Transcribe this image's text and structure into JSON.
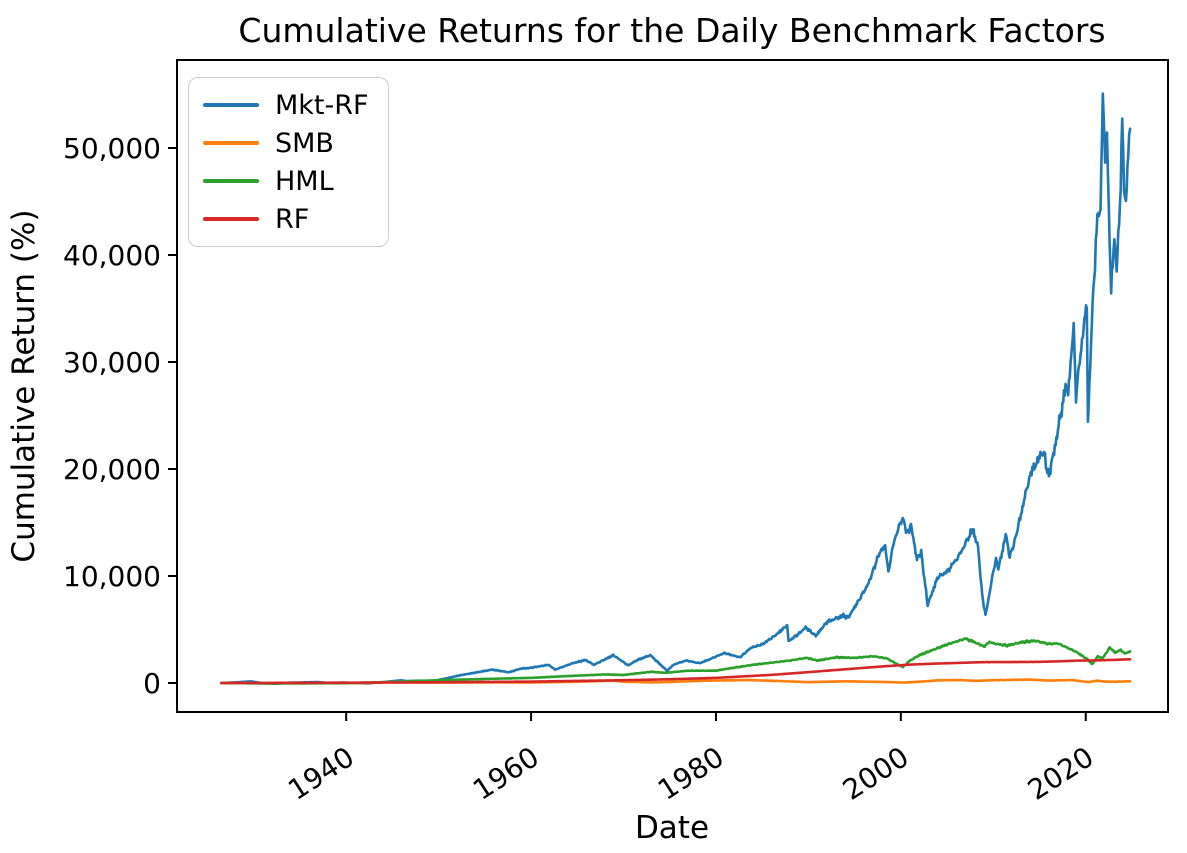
{
  "figure": {
    "background": "#ffffff",
    "spine_color": "#000000",
    "text_color": "#000000"
  },
  "chart_data": {
    "type": "line",
    "title": "Cumulative Returns for the Daily Benchmark Factors",
    "xlabel": "Date",
    "ylabel": "Cumulative Return (%)",
    "legend_position": "upper-left",
    "grid": false,
    "x_axis_unit": "year",
    "x_range": [
      1921.7,
      2028.9
    ],
    "y_range": [
      -2710,
      58225
    ],
    "x_ticks": [
      1940,
      1960,
      1980,
      2000,
      2020
    ],
    "x_tick_labels": [
      "1940",
      "1960",
      "1980",
      "2000",
      "2020"
    ],
    "x_tick_rotation_deg": 33,
    "y_ticks": [
      0,
      10000,
      20000,
      30000,
      40000,
      50000
    ],
    "y_tick_labels": [
      "0",
      "10,000",
      "20,000",
      "30,000",
      "40,000",
      "50,000"
    ],
    "series": [
      {
        "name": "Mkt-RF",
        "color": "#1f77b4",
        "noise_rel": 0.032,
        "noise_abs": 4,
        "points": [
          [
            1926.5,
            0
          ],
          [
            1928,
            60
          ],
          [
            1929.7,
            150
          ],
          [
            1931,
            -20
          ],
          [
            1932.5,
            -70
          ],
          [
            1933.8,
            30
          ],
          [
            1936.9,
            90
          ],
          [
            1938.2,
            0
          ],
          [
            1939.7,
            40
          ],
          [
            1942.3,
            -30
          ],
          [
            1944,
            80
          ],
          [
            1945.9,
            250
          ],
          [
            1946.6,
            180
          ],
          [
            1948,
            220
          ],
          [
            1949.4,
            180
          ],
          [
            1950.9,
            450
          ],
          [
            1952.5,
            750
          ],
          [
            1954.5,
            1050
          ],
          [
            1955.8,
            1250
          ],
          [
            1957.6,
            1000
          ],
          [
            1958.9,
            1350
          ],
          [
            1959.8,
            1400
          ],
          [
            1961.9,
            1700
          ],
          [
            1962.6,
            1250
          ],
          [
            1964.5,
            1850
          ],
          [
            1965.9,
            2150
          ],
          [
            1966.8,
            1700
          ],
          [
            1968.9,
            2600
          ],
          [
            1970.5,
            1650
          ],
          [
            1971.5,
            2150
          ],
          [
            1972.9,
            2600
          ],
          [
            1974.7,
            1150
          ],
          [
            1975.5,
            1750
          ],
          [
            1976.8,
            2100
          ],
          [
            1978.2,
            1850
          ],
          [
            1979,
            2100
          ],
          [
            1980.9,
            2800
          ],
          [
            1982.6,
            2400
          ],
          [
            1983.8,
            3300
          ],
          [
            1985,
            3600
          ],
          [
            1986.5,
            4500
          ],
          [
            1987.7,
            5400
          ],
          [
            1987.85,
            3900
          ],
          [
            1989.1,
            4700
          ],
          [
            1989.7,
            5200
          ],
          [
            1990.8,
            4400
          ],
          [
            1992,
            5700
          ],
          [
            1993.8,
            6300
          ],
          [
            1994.3,
            6100
          ],
          [
            1995.5,
            7800
          ],
          [
            1996.5,
            9300
          ],
          [
            1997.7,
            12200
          ],
          [
            1998.3,
            12800
          ],
          [
            1998.65,
            10400
          ],
          [
            1999.3,
            13400
          ],
          [
            2000.2,
            15500
          ],
          [
            2000.65,
            14000
          ],
          [
            2001.1,
            14700
          ],
          [
            2001.75,
            11600
          ],
          [
            2002.2,
            12200
          ],
          [
            2002.9,
            7300
          ],
          [
            2004,
            9900
          ],
          [
            2005,
            10400
          ],
          [
            2006.3,
            11900
          ],
          [
            2007.2,
            13400
          ],
          [
            2007.8,
            14400
          ],
          [
            2008.35,
            12700
          ],
          [
            2008.8,
            8200
          ],
          [
            2009.16,
            6300
          ],
          [
            2009.9,
            9900
          ],
          [
            2010.3,
            11700
          ],
          [
            2010.55,
            10600
          ],
          [
            2011.35,
            13900
          ],
          [
            2011.78,
            11800
          ],
          [
            2012.3,
            13200
          ],
          [
            2013,
            15800
          ],
          [
            2013.9,
            19200
          ],
          [
            2014.7,
            20700
          ],
          [
            2015.5,
            21700
          ],
          [
            2015.7,
            20200
          ],
          [
            2016.1,
            19500
          ],
          [
            2016.9,
            23200
          ],
          [
            2017.9,
            28000
          ],
          [
            2018.1,
            27200
          ],
          [
            2018.7,
            33300
          ],
          [
            2018.95,
            26800
          ],
          [
            2019.6,
            32000
          ],
          [
            2020.12,
            35600
          ],
          [
            2020.24,
            24400
          ],
          [
            2020.65,
            33500
          ],
          [
            2021.0,
            39500
          ],
          [
            2021.35,
            44500
          ],
          [
            2021.6,
            43800
          ],
          [
            2021.85,
            55200
          ],
          [
            2022.1,
            49000
          ],
          [
            2022.3,
            51500
          ],
          [
            2022.5,
            44000
          ],
          [
            2022.75,
            36800
          ],
          [
            2023.1,
            41500
          ],
          [
            2023.35,
            38800
          ],
          [
            2023.7,
            44500
          ],
          [
            2023.95,
            52800
          ],
          [
            2024.15,
            46500
          ],
          [
            2024.35,
            44800
          ],
          [
            2024.6,
            50000
          ],
          [
            2024.8,
            51800
          ]
        ]
      },
      {
        "name": "SMB",
        "color": "#ff7f0e",
        "noise_rel": 0.05,
        "noise_abs": 14,
        "points": [
          [
            1926.5,
            0
          ],
          [
            1935,
            -30
          ],
          [
            1940,
            -20
          ],
          [
            1945,
            60
          ],
          [
            1950,
            40
          ],
          [
            1955,
            60
          ],
          [
            1960,
            50
          ],
          [
            1965,
            120
          ],
          [
            1968.9,
            220
          ],
          [
            1970,
            120
          ],
          [
            1973,
            60
          ],
          [
            1975,
            100
          ],
          [
            1979,
            220
          ],
          [
            1983.5,
            280
          ],
          [
            1987,
            180
          ],
          [
            1990,
            80
          ],
          [
            1994,
            160
          ],
          [
            1999,
            80
          ],
          [
            2000.3,
            40
          ],
          [
            2002,
            120
          ],
          [
            2004,
            250
          ],
          [
            2006.5,
            280
          ],
          [
            2008,
            200
          ],
          [
            2010,
            260
          ],
          [
            2013.8,
            320
          ],
          [
            2016,
            230
          ],
          [
            2018.5,
            280
          ],
          [
            2020.3,
            80
          ],
          [
            2021.2,
            220
          ],
          [
            2022,
            140
          ],
          [
            2023,
            120
          ],
          [
            2024.8,
            160
          ]
        ]
      },
      {
        "name": "HML",
        "color": "#2ca02c",
        "noise_rel": 0.028,
        "noise_abs": 4,
        "points": [
          [
            1926.5,
            0
          ],
          [
            1931,
            -40
          ],
          [
            1935,
            -30
          ],
          [
            1940,
            -10
          ],
          [
            1944,
            80
          ],
          [
            1948,
            200
          ],
          [
            1950,
            260
          ],
          [
            1955,
            380
          ],
          [
            1960,
            480
          ],
          [
            1964,
            650
          ],
          [
            1968,
            800
          ],
          [
            1970,
            750
          ],
          [
            1973,
            1050
          ],
          [
            1974.5,
            950
          ],
          [
            1977,
            1150
          ],
          [
            1980,
            1150
          ],
          [
            1981,
            1300
          ],
          [
            1984,
            1700
          ],
          [
            1986,
            1900
          ],
          [
            1988,
            2100
          ],
          [
            1989.8,
            2350
          ],
          [
            1991,
            2100
          ],
          [
            1993,
            2400
          ],
          [
            1995,
            2350
          ],
          [
            1997,
            2500
          ],
          [
            1998.5,
            2300
          ],
          [
            1999.5,
            1800
          ],
          [
            2000.2,
            1500
          ],
          [
            2001,
            2100
          ],
          [
            2002,
            2600
          ],
          [
            2003.5,
            3100
          ],
          [
            2005,
            3600
          ],
          [
            2007.0,
            4150
          ],
          [
            2008.3,
            3700
          ],
          [
            2009.0,
            3400
          ],
          [
            2009.6,
            3850
          ],
          [
            2010,
            3700
          ],
          [
            2011.5,
            3500
          ],
          [
            2013,
            3800
          ],
          [
            2014.5,
            3950
          ],
          [
            2016,
            3650
          ],
          [
            2017,
            3700
          ],
          [
            2018,
            3300
          ],
          [
            2019,
            2900
          ],
          [
            2020.2,
            2200
          ],
          [
            2020.7,
            1750
          ],
          [
            2021.3,
            2500
          ],
          [
            2021.8,
            2300
          ],
          [
            2022.6,
            3300
          ],
          [
            2023.2,
            2850
          ],
          [
            2023.8,
            3100
          ],
          [
            2024.2,
            2750
          ],
          [
            2024.8,
            2950
          ]
        ]
      },
      {
        "name": "RF",
        "color": "#d62728",
        "noise_rel": 0.003,
        "noise_abs": 1,
        "points": [
          [
            1926.5,
            0
          ],
          [
            1940,
            30
          ],
          [
            1950,
            70
          ],
          [
            1960,
            130
          ],
          [
            1970,
            260
          ],
          [
            1975,
            350
          ],
          [
            1980,
            480
          ],
          [
            1983,
            620
          ],
          [
            1986,
            760
          ],
          [
            1989,
            950
          ],
          [
            1992,
            1150
          ],
          [
            1995,
            1350
          ],
          [
            1998,
            1550
          ],
          [
            2001,
            1720
          ],
          [
            2004,
            1820
          ],
          [
            2007,
            1900
          ],
          [
            2009,
            1950
          ],
          [
            2012,
            1960
          ],
          [
            2015,
            1980
          ],
          [
            2017,
            2020
          ],
          [
            2019,
            2090
          ],
          [
            2021,
            2110
          ],
          [
            2023,
            2160
          ],
          [
            2024.8,
            2220
          ]
        ]
      }
    ],
    "layout": {
      "plot_left": 177,
      "plot_top": 60,
      "plot_right": 1168,
      "plot_bottom": 712,
      "tick_length": 9,
      "line_width": 2.6,
      "spine_width": 2
    }
  }
}
